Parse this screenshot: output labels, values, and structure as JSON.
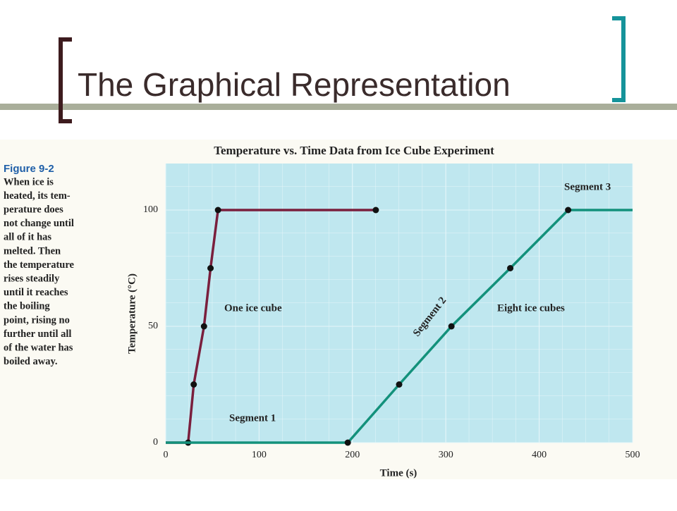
{
  "slide": {
    "title": "The Graphical Representation"
  },
  "caption": {
    "heading": "Figure 9-2",
    "lines": [
      "When ice is",
      "heated, its tem-",
      "perature does",
      "not change until",
      "all of it has",
      "melted. Then",
      "the temperature",
      "rises steadily",
      "until it reaches",
      "the boiling",
      "point, rising no",
      "further until all",
      "of the water has",
      "boiled away."
    ]
  },
  "chart_data": {
    "type": "line",
    "title": "Temperature vs. Time Data from Ice Cube Experiment",
    "x_label": "Time (s)",
    "y_label": "Temperature (°C)",
    "xlim": [
      0,
      500
    ],
    "ylim": [
      0,
      120
    ],
    "xticks": [
      0,
      100,
      200,
      300,
      400,
      500
    ],
    "yticks": [
      0,
      50,
      100
    ],
    "grid": true,
    "series": [
      {
        "name": "One ice cube",
        "color": "#7a1f3d",
        "x": [
          0,
          24,
          30,
          41,
          48,
          56,
          225
        ],
        "values": [
          0,
          0,
          25,
          50,
          75,
          100,
          100
        ],
        "markers": [
          false,
          true,
          true,
          true,
          true,
          true,
          true
        ]
      },
      {
        "name": "Eight ice cubes",
        "color": "#13917b",
        "x": [
          0,
          195,
          250,
          306,
          369,
          431,
          500
        ],
        "values": [
          0,
          0,
          25,
          50,
          75,
          100,
          100
        ],
        "markers": [
          false,
          true,
          true,
          true,
          true,
          true,
          false
        ]
      }
    ],
    "annotations": [
      "Segment 1",
      "Segment 2",
      "Segment 3"
    ]
  }
}
